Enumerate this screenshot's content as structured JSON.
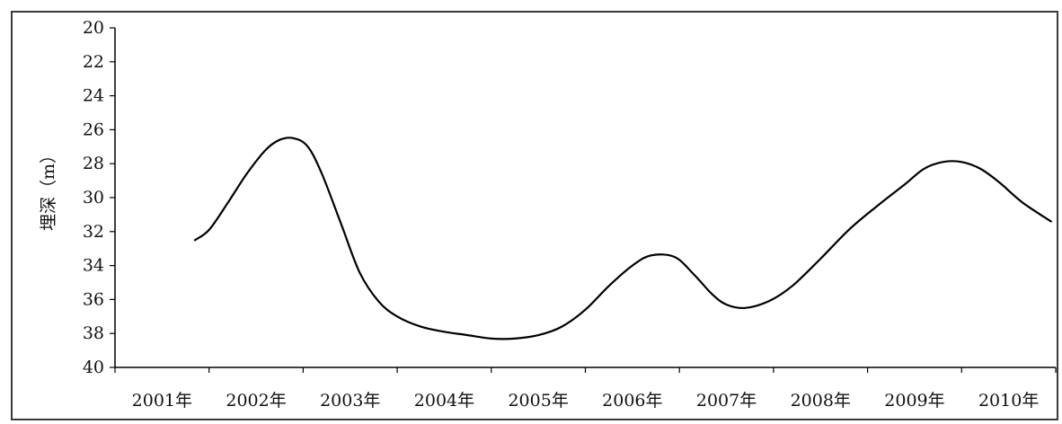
{
  "chart_data": {
    "type": "line",
    "title": "",
    "xlabel": "",
    "ylabel": "埋深（m）",
    "categories": [
      "2001年",
      "2002年",
      "2003年",
      "2004年",
      "2005年",
      "2006年",
      "2007年",
      "2008年",
      "2009年",
      "2010年"
    ],
    "yticks": [
      "20",
      "22",
      "24",
      "26",
      "28",
      "30",
      "32",
      "34",
      "36",
      "38",
      "40"
    ],
    "ylim": [
      20,
      40
    ],
    "y_inverted": true,
    "grid": false,
    "legend": "none",
    "series": [
      {
        "x": [
          2001.35,
          2001.5,
          2001.7,
          2001.9,
          2002.1,
          2002.25,
          2002.4,
          2002.55,
          2002.7,
          2002.9,
          2003.1,
          2003.3,
          2003.5,
          2003.75,
          2004.0,
          2004.25,
          2004.5,
          2004.75,
          2005.0,
          2005.25,
          2005.5,
          2005.75,
          2006.0,
          2006.2,
          2006.45,
          2006.65,
          2006.85,
          2007.0,
          2007.2,
          2007.45,
          2007.7,
          2008.0,
          2008.3,
          2008.6,
          2008.9,
          2009.1,
          2009.3,
          2009.5,
          2009.7,
          2009.9,
          2010.15,
          2010.45
        ],
        "values": [
          32.5,
          31.9,
          30.3,
          28.6,
          27.2,
          26.6,
          26.5,
          27.0,
          28.6,
          31.5,
          34.4,
          36.1,
          37.0,
          37.6,
          37.9,
          38.1,
          38.3,
          38.3,
          38.1,
          37.6,
          36.6,
          35.2,
          34.0,
          33.4,
          33.5,
          34.5,
          35.7,
          36.3,
          36.5,
          36.1,
          35.2,
          33.6,
          31.9,
          30.5,
          29.2,
          28.3,
          27.9,
          27.9,
          28.3,
          29.1,
          30.3,
          31.4
        ],
        "color": "#000000"
      }
    ]
  }
}
